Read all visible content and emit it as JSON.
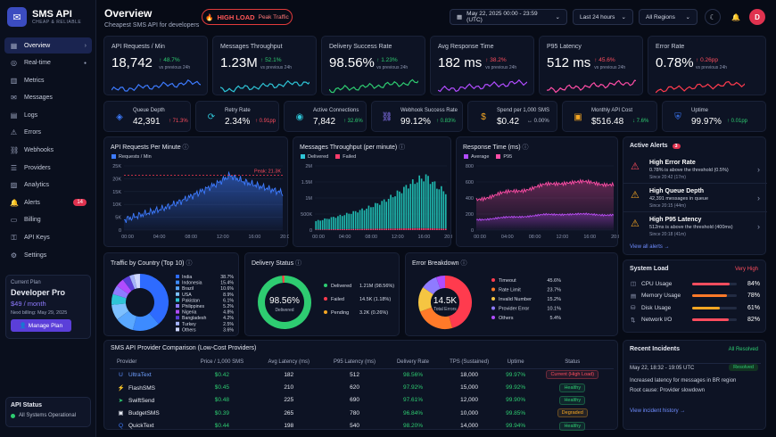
{
  "app": {
    "name": "SMS API",
    "tagline": "CHEAP & RELIABLE",
    "logo_icon": "message-bubble"
  },
  "nav": [
    {
      "label": "Overview",
      "icon": "grid",
      "active": true
    },
    {
      "label": "Real-time",
      "icon": "activity"
    },
    {
      "label": "Metrics",
      "icon": "bar-chart"
    },
    {
      "label": "Messages",
      "icon": "chat"
    },
    {
      "label": "Logs",
      "icon": "file"
    },
    {
      "label": "Errors",
      "icon": "warning"
    },
    {
      "label": "Webhooks",
      "icon": "link"
    },
    {
      "label": "Providers",
      "icon": "server"
    },
    {
      "label": "Analytics",
      "icon": "chart"
    },
    {
      "label": "Alerts",
      "icon": "bell",
      "badge": "14"
    },
    {
      "label": "Billing",
      "icon": "card"
    },
    {
      "label": "API Keys",
      "icon": "key"
    },
    {
      "label": "Settings",
      "icon": "gear"
    }
  ],
  "plan": {
    "label": "Current Plan",
    "name": "Developer Pro",
    "price": "$49 / month",
    "billing": "Next billing: May 29, 2025",
    "button": "Manage Plan"
  },
  "api_status": {
    "title": "API Status",
    "status": "All Systems Operational"
  },
  "header": {
    "title": "Overview",
    "subtitle": "Cheapest SMS API for developers",
    "load_label": "HIGH LOAD",
    "load_sub": "Peak Traffic",
    "date_range": "May 22, 2025 00:00 - 23:59 (UTC)",
    "period": "Last 24 hours",
    "region": "All Regions",
    "avatar": "D"
  },
  "kpis": [
    {
      "label": "API Requests / Min",
      "value": "18,742",
      "delta": "48.7%",
      "dir": "up",
      "sub": "vs previous 24h",
      "color": "#3d7bff"
    },
    {
      "label": "Messages Throughput",
      "value": "1.23M",
      "delta": "52.1%",
      "dir": "up",
      "sub": "vs previous 24h",
      "color": "#2ec4d6"
    },
    {
      "label": "Delivery Success Rate",
      "value": "98.56%",
      "delta": "1.23%",
      "dir": "up",
      "sub": "vs previous 24h",
      "color": "#2ecc71"
    },
    {
      "label": "Avg Response Time",
      "value": "182 ms",
      "delta": "38.2%",
      "dir": "up-bad",
      "sub": "vs previous 24h",
      "color": "#b14cff"
    },
    {
      "label": "P95 Latency",
      "value": "512 ms",
      "delta": "45.6%",
      "dir": "up-bad",
      "sub": "vs previous 24h",
      "color": "#ff4da6"
    },
    {
      "label": "Error Rate",
      "value": "0.78%",
      "delta": "0.26pp",
      "dir": "up-bad",
      "sub": "vs previous 24h",
      "color": "#ff3b4e"
    }
  ],
  "metrics": [
    {
      "label": "Queue Depth",
      "value": "42,391",
      "delta": "71.3%",
      "tone": "down",
      "arrow": "↑",
      "icon": "layers",
      "color": "#3d7bff"
    },
    {
      "label": "Retry Rate",
      "value": "2.34%",
      "delta": "0.91pp",
      "tone": "down",
      "arrow": "↑",
      "icon": "refresh",
      "color": "#2ec4d6"
    },
    {
      "label": "Active Connections",
      "value": "7,842",
      "delta": "32.6%",
      "tone": "up",
      "arrow": "↑",
      "icon": "wifi",
      "color": "#2ec4d6"
    },
    {
      "label": "Webhook Success Rate",
      "value": "99.12%",
      "delta": "0.83%",
      "tone": "up",
      "arrow": "↑",
      "icon": "link",
      "color": "#8f7bff"
    },
    {
      "label": "Spend per 1,000 SMS",
      "value": "$0.42",
      "delta": "0.00%",
      "tone": "neu",
      "arrow": "↔",
      "icon": "coin",
      "color": "#f5a623"
    },
    {
      "label": "Monthly API Cost",
      "value": "$516.48",
      "delta": "7.6%",
      "tone": "up",
      "arrow": "↓",
      "icon": "wallet",
      "color": "#f5a623"
    },
    {
      "label": "Uptime",
      "value": "99.97%",
      "delta": "0.01pp",
      "tone": "up",
      "arrow": "↑",
      "icon": "shield",
      "color": "#3d7bff"
    }
  ],
  "charts": {
    "requests": {
      "title": "API Requests Per Minute",
      "legend": "Requests / Min",
      "peak": "Peak: 21.3K",
      "x": [
        "00:00",
        "04:00",
        "08:00",
        "12:00",
        "16:00",
        "20:00"
      ],
      "yticks": [
        "0",
        "5K",
        "10K",
        "15K",
        "20K",
        "25K"
      ]
    },
    "throughput": {
      "title": "Messages Throughput (per minute)",
      "legend": [
        "Delivered",
        "Failed"
      ],
      "x": [
        "00:00",
        "04:00",
        "08:00",
        "12:00",
        "16:00",
        "20:00"
      ],
      "yticks": [
        "0",
        "500K",
        "1M",
        "1.5M",
        "2M"
      ]
    },
    "response": {
      "title": "Response Time (ms)",
      "legend": [
        "Average",
        "P95"
      ],
      "x": [
        "00:00",
        "04:00",
        "08:00",
        "12:00",
        "16:00",
        "20:00"
      ],
      "yticks": [
        "0",
        "200",
        "400",
        "600",
        "800"
      ]
    }
  },
  "chart_data": [
    {
      "type": "line",
      "title": "API Requests Per Minute",
      "x": [
        "00:00",
        "02:00",
        "04:00",
        "06:00",
        "08:00",
        "10:00",
        "12:00",
        "14:00",
        "16:00",
        "18:00",
        "20:00",
        "22:00",
        "24:00"
      ],
      "series": [
        {
          "name": "Requests / Min",
          "values": [
            4000,
            5500,
            7000,
            8500,
            10500,
            13000,
            15500,
            18000,
            21300,
            19000,
            17500,
            16000,
            14500
          ]
        }
      ],
      "ylim": [
        0,
        25000
      ]
    },
    {
      "type": "bar",
      "title": "Messages Throughput (per minute)",
      "series": [
        {
          "name": "Delivered",
          "values": [
            260000,
            300000,
            340000,
            380000,
            420000,
            470000,
            520000,
            570000,
            630000,
            700000,
            780000,
            860000,
            960000,
            1080000,
            1200000,
            1350000,
            1450000,
            1550000,
            1600000,
            1400000,
            1250000,
            1150000
          ]
        },
        {
          "name": "Failed",
          "values": [
            20000,
            20000,
            25000,
            25000,
            30000,
            30000,
            35000,
            35000,
            40000,
            40000,
            45000,
            45000,
            50000,
            50000,
            55000,
            55000,
            60000,
            60000,
            60000,
            55000,
            50000,
            45000
          ]
        }
      ],
      "ylim": [
        0,
        2000000
      ]
    },
    {
      "type": "line",
      "title": "Response Time (ms)",
      "x": [
        "00:00",
        "04:00",
        "08:00",
        "12:00",
        "16:00",
        "20:00",
        "24:00"
      ],
      "series": [
        {
          "name": "Average",
          "values": [
            130,
            150,
            170,
            190,
            200,
            195,
            190
          ]
        },
        {
          "name": "P95",
          "values": [
            380,
            450,
            500,
            560,
            600,
            590,
            570
          ]
        }
      ],
      "ylim": [
        0,
        800
      ]
    },
    {
      "type": "pie",
      "title": "Traffic by Country (Top 10)",
      "categories": [
        "India",
        "Indonesia",
        "Brazil",
        "USA",
        "Pakistan",
        "Philippines",
        "Nigeria",
        "Bangladesh",
        "Turkey",
        "Others"
      ],
      "values": [
        38.7,
        15.4,
        10.6,
        8.9,
        6.1,
        5.2,
        4.8,
        4.2,
        2.5,
        3.6
      ]
    },
    {
      "type": "pie",
      "title": "Delivery Status",
      "categories": [
        "Delivered",
        "Failed",
        "Pending"
      ],
      "values": [
        98.56,
        1.18,
        0.26
      ],
      "counts": [
        "1.21M",
        "14.5K",
        "3.2K"
      ],
      "center": "98.56%",
      "center_label": "Delivered"
    },
    {
      "type": "pie",
      "title": "Error Breakdown",
      "categories": [
        "Timeout",
        "Rate Limit",
        "Invalid Number",
        "Provider Error",
        "Others"
      ],
      "values": [
        45.6,
        23.7,
        15.2,
        10.1,
        5.4
      ],
      "center": "14.5K",
      "center_label": "Total Errors"
    }
  ],
  "country_colors": [
    "#2e6bff",
    "#3d8bff",
    "#5aa8ff",
    "#7dc0ff",
    "#2ec4d6",
    "#8f7bff",
    "#b14cff",
    "#5b3fd9",
    "#a5b4fc",
    "#cfd8ff"
  ],
  "delivery_colors": [
    "#2ecc71",
    "#ff3b4e",
    "#f5a623"
  ],
  "error_colors": [
    "#ff3b4e",
    "#ff7a29",
    "#f5c542",
    "#8f7bff",
    "#b14cff"
  ],
  "alerts": {
    "title": "Active Alerts",
    "count": "3",
    "view_all": "View all alerts →",
    "items": [
      {
        "title": "High Error Rate",
        "desc": "0.78% is above the threshold (0.5%)",
        "since": "Since 20:42 (17m)",
        "color": "#ff4d5e"
      },
      {
        "title": "High Queue Depth",
        "desc": "42,391 messages in queue",
        "since": "Since 20:15 (44m)",
        "color": "#f5a623"
      },
      {
        "title": "High P95 Latency",
        "desc": "512ms is above the threshold (400ms)",
        "since": "Since 20:18 (41m)",
        "color": "#f5a623"
      }
    ]
  },
  "system_load": {
    "title": "System Load",
    "status": "Very High",
    "items": [
      {
        "label": "CPU Usage",
        "value": "84%",
        "pct": 84,
        "color": "#ff4d5e"
      },
      {
        "label": "Memory Usage",
        "value": "78%",
        "pct": 78,
        "color": "#ff7a29"
      },
      {
        "label": "Disk Usage",
        "value": "61%",
        "pct": 61,
        "color": "#f5a623"
      },
      {
        "label": "Network I/O",
        "value": "82%",
        "pct": 82,
        "color": "#ff4d5e"
      }
    ]
  },
  "incidents": {
    "title": "Recent Incidents",
    "status": "All Resolved",
    "time": "May 22, 18:32 - 19:05 UTC",
    "badge": "Resolved",
    "desc": "Increased latency for messages in BR region",
    "cause": "Root cause: Provider slowdown",
    "link": "View incident history →"
  },
  "providers": {
    "title": "SMS API Provider Comparison (Low-Cost Providers)",
    "columns": [
      "Provider",
      "Price / 1,000 SMS",
      "Avg Latency (ms)",
      "P95 Latency (ms)",
      "Delivery Rate",
      "TPS (Sustained)",
      "Uptime",
      "Status"
    ],
    "rows": [
      {
        "name": "UltraText",
        "icon": "U",
        "icon_color": "#5b8dff",
        "name_color": "#6fa0ff",
        "price": "$0.42",
        "latency": "182",
        "p95": "512",
        "rate": "98.56%",
        "tps": "18,000",
        "uptime": "99.97%",
        "status": "Current (High Load)",
        "status_color": "#ff4d5e"
      },
      {
        "name": "FlashSMS",
        "icon": "⚡",
        "icon_color": "#f5a623",
        "name_color": "#e6e9f2",
        "price": "$0.45",
        "latency": "210",
        "p95": "620",
        "rate": "97.92%",
        "tps": "15,000",
        "uptime": "99.92%",
        "status": "Healthy",
        "status_color": "#2ecc71"
      },
      {
        "name": "SwiftSend",
        "icon": "➤",
        "icon_color": "#2ecc71",
        "name_color": "#e6e9f2",
        "price": "$0.48",
        "latency": "225",
        "p95": "690",
        "rate": "97.61%",
        "tps": "12,000",
        "uptime": "99.90%",
        "status": "Healthy",
        "status_color": "#2ecc71"
      },
      {
        "name": "BudgetSMS",
        "icon": "▣",
        "icon_color": "#e6e9f2",
        "name_color": "#e6e9f2",
        "price": "$0.39",
        "latency": "265",
        "p95": "780",
        "rate": "96.84%",
        "tps": "10,000",
        "uptime": "99.85%",
        "status": "Degraded",
        "status_color": "#f5a623"
      },
      {
        "name": "QuickText",
        "icon": "Q",
        "icon_color": "#3d7bff",
        "name_color": "#e6e9f2",
        "price": "$0.44",
        "latency": "198",
        "p95": "540",
        "rate": "98.20%",
        "tps": "14,000",
        "uptime": "99.94%",
        "status": "Healthy",
        "status_color": "#2ecc71"
      }
    ]
  }
}
